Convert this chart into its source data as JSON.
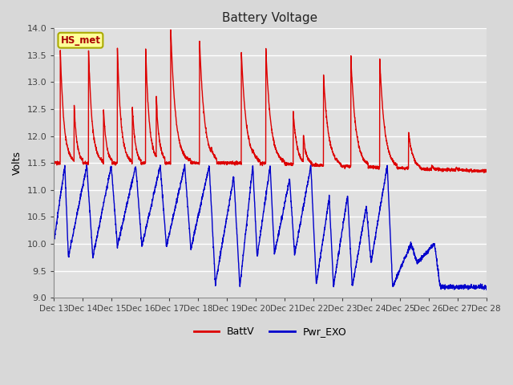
{
  "title": "Battery Voltage",
  "ylabel": "Volts",
  "ylim": [
    9.0,
    14.0
  ],
  "yticks": [
    9.0,
    9.5,
    10.0,
    10.5,
    11.0,
    11.5,
    12.0,
    12.5,
    13.0,
    13.5,
    14.0
  ],
  "background_color": "#d8d8d8",
  "plot_background": "#e0e0e0",
  "grid_color": "#ffffff",
  "line_color_red": "#dd0000",
  "line_color_blue": "#0000cc",
  "annotation_text": "HS_met",
  "annotation_color": "#aa0000",
  "annotation_bg": "#ffff99",
  "annotation_border": "#aaaa00",
  "legend_labels": [
    "BattV",
    "Pwr_EXO"
  ]
}
